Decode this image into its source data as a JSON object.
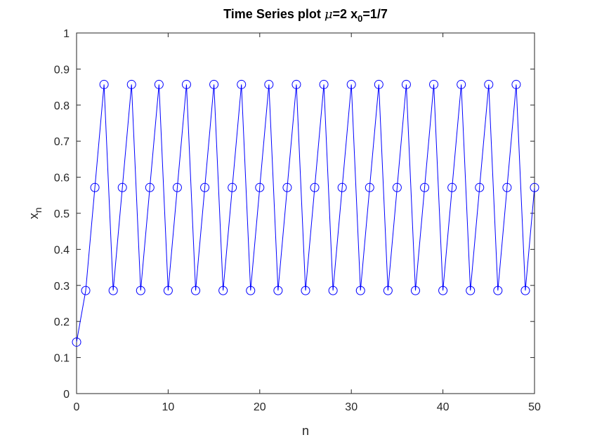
{
  "chart_data": {
    "type": "line",
    "title": {
      "prefix": "Time Series plot ",
      "mu_symbol": "μ",
      "mu_value": "=2 x",
      "subscript": "0",
      "suffix": "=1/7"
    },
    "xlabel": "n",
    "ylabel": {
      "base": "x",
      "subscript": "n"
    },
    "xlim": [
      0,
      50
    ],
    "ylim": [
      0,
      1
    ],
    "xticks": [
      0,
      10,
      20,
      30,
      40,
      50
    ],
    "yticks": [
      0,
      0.1,
      0.2,
      0.3,
      0.4,
      0.5,
      0.6,
      0.7,
      0.8,
      0.9,
      1
    ],
    "xtick_labels": [
      "0",
      "10",
      "20",
      "30",
      "40",
      "50"
    ],
    "ytick_labels": [
      "0",
      "0.1",
      "0.2",
      "0.3",
      "0.4",
      "0.5",
      "0.6",
      "0.7",
      "0.8",
      "0.9",
      "1"
    ],
    "grid": false,
    "marker": "circle",
    "line_color": "#0000ff",
    "series": [
      {
        "x": [
          0,
          1,
          2,
          3,
          4,
          5,
          6,
          7,
          8,
          9,
          10,
          11,
          12,
          13,
          14,
          15,
          16,
          17,
          18,
          19,
          20,
          21,
          22,
          23,
          24,
          25,
          26,
          27,
          28,
          29,
          30,
          31,
          32,
          33,
          34,
          35,
          36,
          37,
          38,
          39,
          40,
          41,
          42,
          43,
          44,
          45,
          46,
          47,
          48,
          49,
          50
        ],
        "values": [
          0.142857,
          0.285714,
          0.571429,
          0.857143,
          0.285714,
          0.571429,
          0.857143,
          0.285714,
          0.571429,
          0.857143,
          0.285714,
          0.571429,
          0.857143,
          0.285714,
          0.571429,
          0.857143,
          0.285714,
          0.571429,
          0.857143,
          0.285714,
          0.571429,
          0.857143,
          0.285714,
          0.571429,
          0.857143,
          0.285714,
          0.571429,
          0.857143,
          0.285714,
          0.571429,
          0.857143,
          0.285714,
          0.571429,
          0.857143,
          0.285714,
          0.571429,
          0.857143,
          0.285714,
          0.571429,
          0.857143,
          0.285714,
          0.571429,
          0.857143,
          0.285714,
          0.571429,
          0.857143,
          0.285714,
          0.571429,
          0.857143,
          0.285714,
          0.571429
        ]
      }
    ]
  }
}
